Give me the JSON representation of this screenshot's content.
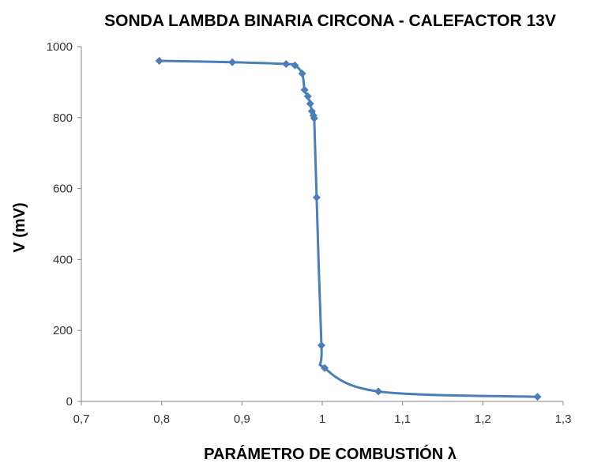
{
  "chart_data": {
    "type": "scatter",
    "title": "SONDA LAMBDA BINARIA CIRCONA - CALEFACTOR 13V",
    "xlabel": "PARÁMETRO DE COMBUSTIÓN λ",
    "ylabel": "V (mV)",
    "xlim": [
      0.7,
      1.3
    ],
    "ylim": [
      0,
      1000
    ],
    "x_ticks": [
      0.7,
      0.8,
      0.9,
      1.0,
      1.1,
      1.2,
      1.3
    ],
    "x_tick_labels": [
      "0,7",
      "0,8",
      "0,9",
      "1",
      "1,1",
      "1,2",
      "1,3"
    ],
    "y_ticks": [
      0,
      200,
      400,
      600,
      800,
      1000
    ],
    "y_tick_labels": [
      "0",
      "200",
      "400",
      "600",
      "800",
      "1000"
    ],
    "grid": false,
    "smooth_line": true,
    "marker": "diamond",
    "series_color": "#4a7ebb",
    "series": [
      {
        "x": [
          0.797,
          0.888,
          0.955,
          0.966,
          0.975,
          0.978,
          0.982,
          0.985,
          0.987,
          0.989,
          0.99,
          0.993,
          0.999,
          1.003,
          1.07,
          1.268
        ],
        "y": [
          960,
          956,
          951,
          947,
          924,
          878,
          860,
          839,
          818,
          806,
          798,
          575,
          158,
          94,
          28,
          13
        ]
      }
    ]
  }
}
